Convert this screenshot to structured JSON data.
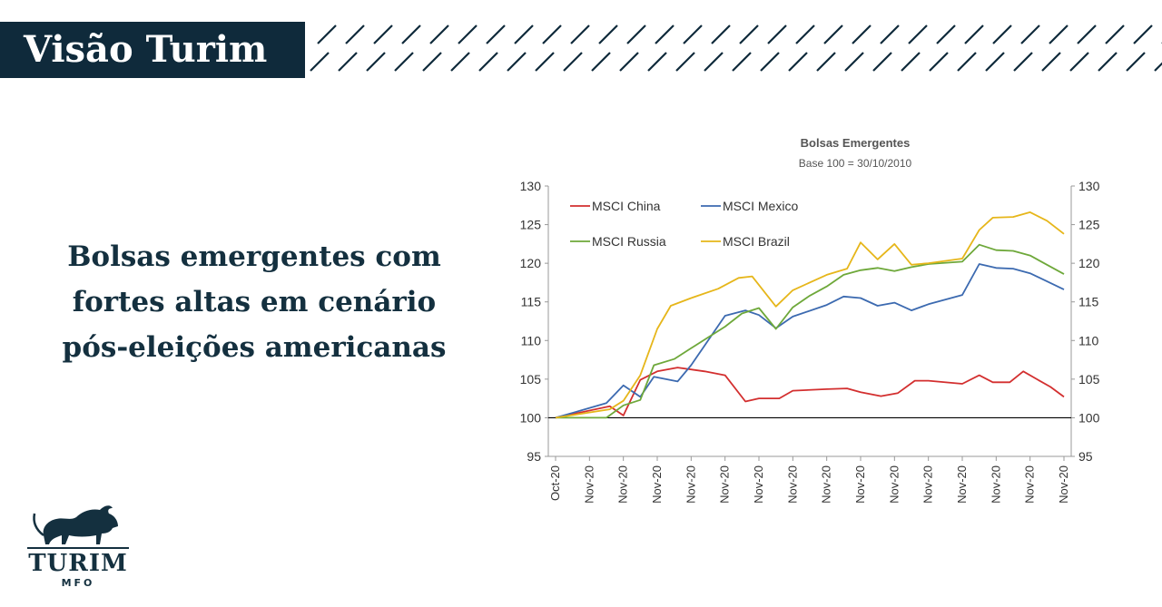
{
  "banner": {
    "title": "Visão Turim"
  },
  "headline": {
    "lines": [
      "Bolsas emergentes com",
      "fortes altas em cenário",
      "pós-eleições americanas"
    ]
  },
  "logo": {
    "name": "TURIM",
    "sub": "MFO"
  },
  "colors": {
    "brand_navy": "#0f2a3b",
    "china": "#d32f2f",
    "mexico": "#3c6ab0",
    "russia": "#6ea83a",
    "brazil": "#e6b61a"
  },
  "chart_data": {
    "type": "line",
    "title": "Bolsas Emergentes",
    "subtitle": "Base 100 = 30/10/2010",
    "x_labels": [
      "Oct-20",
      "Nov-20",
      "Nov-20",
      "Nov-20",
      "Nov-20",
      "Nov-20",
      "Nov-20",
      "Nov-20",
      "Nov-20",
      "Nov-20",
      "Nov-20",
      "Nov-20",
      "Nov-20",
      "Nov-20",
      "Nov-20",
      "Nov-20"
    ],
    "x_range": [
      0,
      15
    ],
    "ylim": [
      95,
      130
    ],
    "y_ticks": [
      95,
      100,
      105,
      110,
      115,
      120,
      125,
      130
    ],
    "baseline": 100,
    "legend_position": "top-left",
    "series": [
      {
        "name": "MSCI China",
        "color": "#d32f2f",
        "points": [
          [
            0,
            100
          ],
          [
            1.6,
            101.5
          ],
          [
            2,
            100.3
          ],
          [
            2.5,
            104.9
          ],
          [
            3,
            106
          ],
          [
            3.6,
            106.5
          ],
          [
            4.4,
            106
          ],
          [
            5,
            105.5
          ],
          [
            5.6,
            102.1
          ],
          [
            6,
            102.5
          ],
          [
            6.6,
            102.5
          ],
          [
            7,
            103.5
          ],
          [
            8,
            103.7
          ],
          [
            8.6,
            103.8
          ],
          [
            9,
            103.3
          ],
          [
            9.6,
            102.8
          ],
          [
            10.1,
            103.2
          ],
          [
            10.6,
            104.8
          ],
          [
            11,
            104.8
          ],
          [
            12,
            104.4
          ],
          [
            12.5,
            105.5
          ],
          [
            12.9,
            104.6
          ],
          [
            13.4,
            104.6
          ],
          [
            13.8,
            106
          ],
          [
            14.2,
            105
          ],
          [
            14.6,
            104
          ],
          [
            15,
            102.7
          ]
        ]
      },
      {
        "name": "MSCI Mexico",
        "color": "#3c6ab0",
        "points": [
          [
            0,
            100
          ],
          [
            1.5,
            101.9
          ],
          [
            2,
            104.2
          ],
          [
            2.5,
            102.7
          ],
          [
            2.9,
            105.3
          ],
          [
            3.6,
            104.7
          ],
          [
            4,
            106.8
          ],
          [
            4.5,
            110
          ],
          [
            5,
            113.2
          ],
          [
            5.6,
            113.9
          ],
          [
            6,
            113.3
          ],
          [
            6.5,
            111.6
          ],
          [
            7,
            113.1
          ],
          [
            8,
            114.6
          ],
          [
            8.5,
            115.7
          ],
          [
            9,
            115.5
          ],
          [
            9.5,
            114.5
          ],
          [
            10,
            114.9
          ],
          [
            10.5,
            113.9
          ],
          [
            11,
            114.7
          ],
          [
            12,
            115.9
          ],
          [
            12.5,
            119.9
          ],
          [
            13,
            119.4
          ],
          [
            13.5,
            119.3
          ],
          [
            14,
            118.7
          ],
          [
            15,
            116.6
          ]
        ]
      },
      {
        "name": "MSCI Russia",
        "color": "#6ea83a",
        "points": [
          [
            0,
            100
          ],
          [
            1.5,
            100
          ],
          [
            2,
            101.6
          ],
          [
            2.5,
            102.3
          ],
          [
            2.9,
            106.8
          ],
          [
            3.5,
            107.6
          ],
          [
            4,
            109
          ],
          [
            4.5,
            110.4
          ],
          [
            5,
            111.8
          ],
          [
            5.5,
            113.5
          ],
          [
            6,
            114.2
          ],
          [
            6.5,
            111.5
          ],
          [
            7,
            114.3
          ],
          [
            7.5,
            115.8
          ],
          [
            8,
            117
          ],
          [
            8.5,
            118.5
          ],
          [
            9,
            119.1
          ],
          [
            9.5,
            119.4
          ],
          [
            10,
            119
          ],
          [
            10.5,
            119.5
          ],
          [
            11,
            119.9
          ],
          [
            12,
            120.2
          ],
          [
            12.5,
            122.4
          ],
          [
            13,
            121.7
          ],
          [
            13.5,
            121.6
          ],
          [
            14,
            121
          ],
          [
            15,
            118.6
          ]
        ]
      },
      {
        "name": "MSCI Brazil",
        "color": "#e6b61a",
        "points": [
          [
            0,
            100
          ],
          [
            1.6,
            101.1
          ],
          [
            2,
            102.2
          ],
          [
            2.5,
            105.5
          ],
          [
            3,
            111.5
          ],
          [
            3.4,
            114.5
          ],
          [
            4,
            115.5
          ],
          [
            4.8,
            116.7
          ],
          [
            5.4,
            118.1
          ],
          [
            5.8,
            118.3
          ],
          [
            6.5,
            114.4
          ],
          [
            7,
            116.5
          ],
          [
            8,
            118.5
          ],
          [
            8.6,
            119.3
          ],
          [
            9,
            122.7
          ],
          [
            9.5,
            120.5
          ],
          [
            10,
            122.5
          ],
          [
            10.5,
            119.8
          ],
          [
            11,
            120
          ],
          [
            12,
            120.6
          ],
          [
            12.5,
            124.3
          ],
          [
            12.9,
            125.9
          ],
          [
            13.5,
            126
          ],
          [
            14,
            126.6
          ],
          [
            14.5,
            125.5
          ],
          [
            15,
            123.8
          ]
        ]
      }
    ]
  }
}
